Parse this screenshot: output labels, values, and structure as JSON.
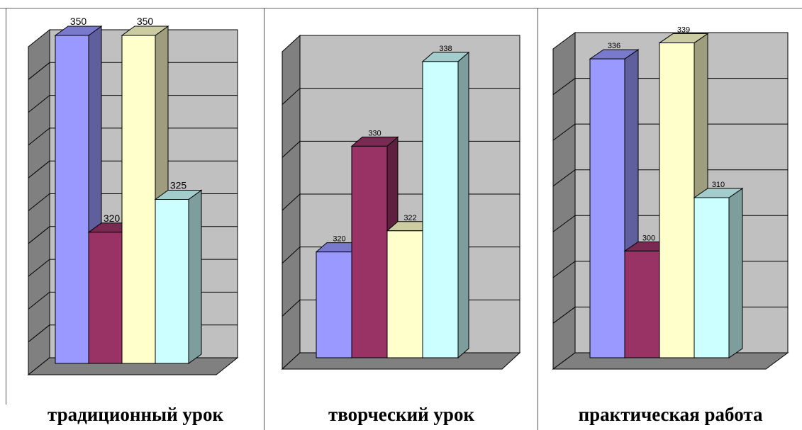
{
  "chart_data": [
    {
      "type": "bar",
      "caption": "традиционный урок",
      "values": [
        350,
        320,
        350,
        325
      ],
      "labels": [
        "350",
        "320",
        "350",
        "325"
      ],
      "ylim": [
        300,
        350
      ]
    },
    {
      "type": "bar",
      "caption": "творческий урок",
      "values": [
        320,
        330,
        322,
        338
      ],
      "labels": [
        "320",
        "330",
        "322",
        "338"
      ],
      "ylim": [
        310,
        340
      ]
    },
    {
      "type": "bar",
      "caption": "практическая работа",
      "values": [
        336,
        300,
        339,
        310
      ],
      "labels": [
        "336",
        "300",
        "339",
        "310"
      ],
      "ylim": [
        280,
        340
      ]
    }
  ],
  "colors": {
    "series": [
      "#9999ff",
      "#993366",
      "#ffffcc",
      "#ccffff"
    ],
    "wall": "#c0c0c0",
    "side_wall": "#808080",
    "floor": "#808080"
  }
}
